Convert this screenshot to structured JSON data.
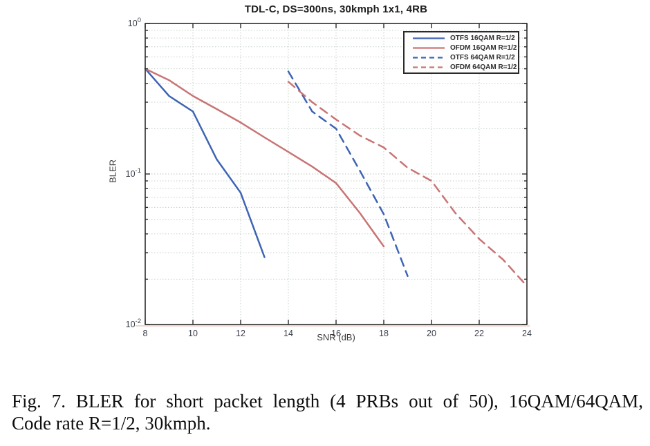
{
  "figure": {
    "title": "TDL-C, DS=300ns, 30kmph 1x1, 4RB",
    "xlabel": "SNR (dB)",
    "ylabel": "BLER"
  },
  "caption": {
    "line1": "Fig. 7. BLER for short packet length (4 PRBs out of 50), 16QAM/64QAM,",
    "line2": "Code rate R=1/2, 30kmph."
  },
  "colors": {
    "otfs_blue": "#3d64b4",
    "ofdm_red": "#c97474",
    "grid": "#c4d1c6",
    "axis": "#2b2b2b"
  },
  "chart_data": {
    "type": "line",
    "title": "TDL-C, DS=300ns, 30kmph 1x1, 4RB",
    "xlabel": "SNR (dB)",
    "ylabel": "BLER",
    "xlim": [
      8,
      24
    ],
    "ylim": [
      0.01,
      1
    ],
    "yscale": "log",
    "grid": true,
    "legend_position": "top-right",
    "x_ticks": [
      8,
      10,
      12,
      14,
      16,
      18,
      20,
      22,
      24
    ],
    "y_tick_exponents": [
      0,
      -1,
      -2
    ],
    "series": [
      {
        "name": "OTFS 16QAM R=1/2",
        "style": "solid",
        "color": "#3d64b4",
        "points": [
          [
            8,
            0.5
          ],
          [
            9,
            0.33
          ],
          [
            10,
            0.26
          ],
          [
            11,
            0.125
          ],
          [
            12,
            0.075
          ],
          [
            13,
            0.028
          ]
        ]
      },
      {
        "name": "OFDM 16QAM R=1/2",
        "style": "solid",
        "color": "#c97474",
        "points": [
          [
            8,
            0.5
          ],
          [
            9,
            0.42
          ],
          [
            10,
            0.33
          ],
          [
            11,
            0.27
          ],
          [
            12,
            0.22
          ],
          [
            13,
            0.175
          ],
          [
            14,
            0.14
          ],
          [
            15,
            0.112
          ],
          [
            16,
            0.087
          ],
          [
            17,
            0.055
          ],
          [
            18,
            0.033
          ]
        ]
      },
      {
        "name": "OTFS 64QAM R=1/2",
        "style": "dashed",
        "color": "#3d64b4",
        "points": [
          [
            14,
            0.48
          ],
          [
            15,
            0.26
          ],
          [
            16,
            0.2
          ],
          [
            17,
            0.105
          ],
          [
            18,
            0.054
          ],
          [
            19,
            0.021
          ]
        ]
      },
      {
        "name": "OFDM 64QAM R=1/2",
        "style": "dashed",
        "color": "#c97474",
        "points": [
          [
            14,
            0.41
          ],
          [
            15,
            0.3
          ],
          [
            16,
            0.23
          ],
          [
            17,
            0.18
          ],
          [
            18,
            0.15
          ],
          [
            19,
            0.11
          ],
          [
            20,
            0.09
          ],
          [
            21,
            0.055
          ],
          [
            22,
            0.037
          ],
          [
            23,
            0.027
          ],
          [
            24,
            0.018
          ]
        ]
      }
    ]
  }
}
